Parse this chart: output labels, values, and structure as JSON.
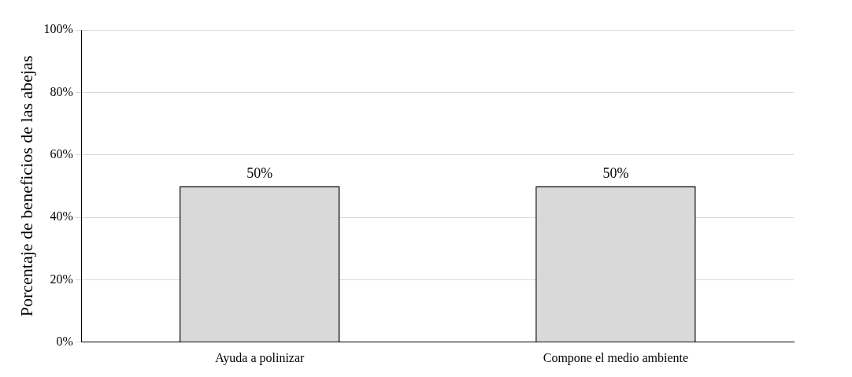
{
  "chart_data": {
    "type": "bar",
    "ylabel": "Porcentaje de beneficios de las abejas",
    "categories": [
      "Ayuda a polinizar",
      "Compone el medio ambiente"
    ],
    "values": [
      50,
      50
    ],
    "color": "#d9d9d9",
    "value_labels": [
      "50%",
      "50%"
    ],
    "ylim": [
      0,
      100
    ],
    "yticks": [
      {
        "value": 0,
        "label": "0%"
      },
      {
        "value": 20,
        "label": "20%"
      },
      {
        "value": 40,
        "label": "40%"
      },
      {
        "value": 60,
        "label": "60%"
      },
      {
        "value": 80,
        "label": "80%"
      },
      {
        "value": 100,
        "label": "100%"
      }
    ],
    "grid": "y",
    "legend": false
  }
}
